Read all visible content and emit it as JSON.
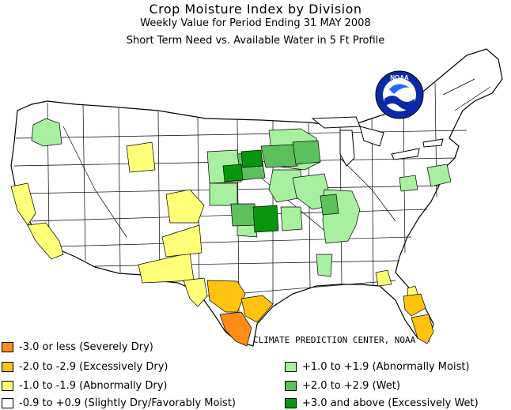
{
  "title": "Crop Moisture Index by Division",
  "subtitle": "Weekly Value for Period Ending 31 MAY 2008",
  "subtitle2": "Short Term Need vs. Available Water in 5 Ft Profile",
  "credit": "CLIMATE PREDICTION CENTER, NOAA",
  "logo_text": "NOAA",
  "colors": {
    "severely_dry": "#ff8c14",
    "excessively_dry": "#ffc20e",
    "abnormally_dry": "#ffff78",
    "near_normal": "#ffffff",
    "abnormally_moist": "#a8f0a0",
    "wet": "#5cc05c",
    "excessively_wet": "#08960e"
  },
  "legend": {
    "left": [
      {
        "label": "-3.0 or less (Severely Dry)",
        "color": "#ff8c14"
      },
      {
        "label": "-2.0 to -2.9 (Excessively Dry)",
        "color": "#ffc20e"
      },
      {
        "label": "-1.0 to -1.9 (Abnormally Dry)",
        "color": "#ffff78"
      },
      {
        "label": "-0.9 to +0.9 (Slightly Dry/Favorably Moist)",
        "color": "#ffffff"
      }
    ],
    "right": [
      {
        "label": "+1.0 to +1.9 (Abnormally Moist)",
        "color": "#a8f0a0"
      },
      {
        "label": "+2.0 to +2.9 (Wet)",
        "color": "#5cc05c"
      },
      {
        "label": "+3.0 and above (Excessively Wet)",
        "color": "#08960e"
      }
    ]
  }
}
